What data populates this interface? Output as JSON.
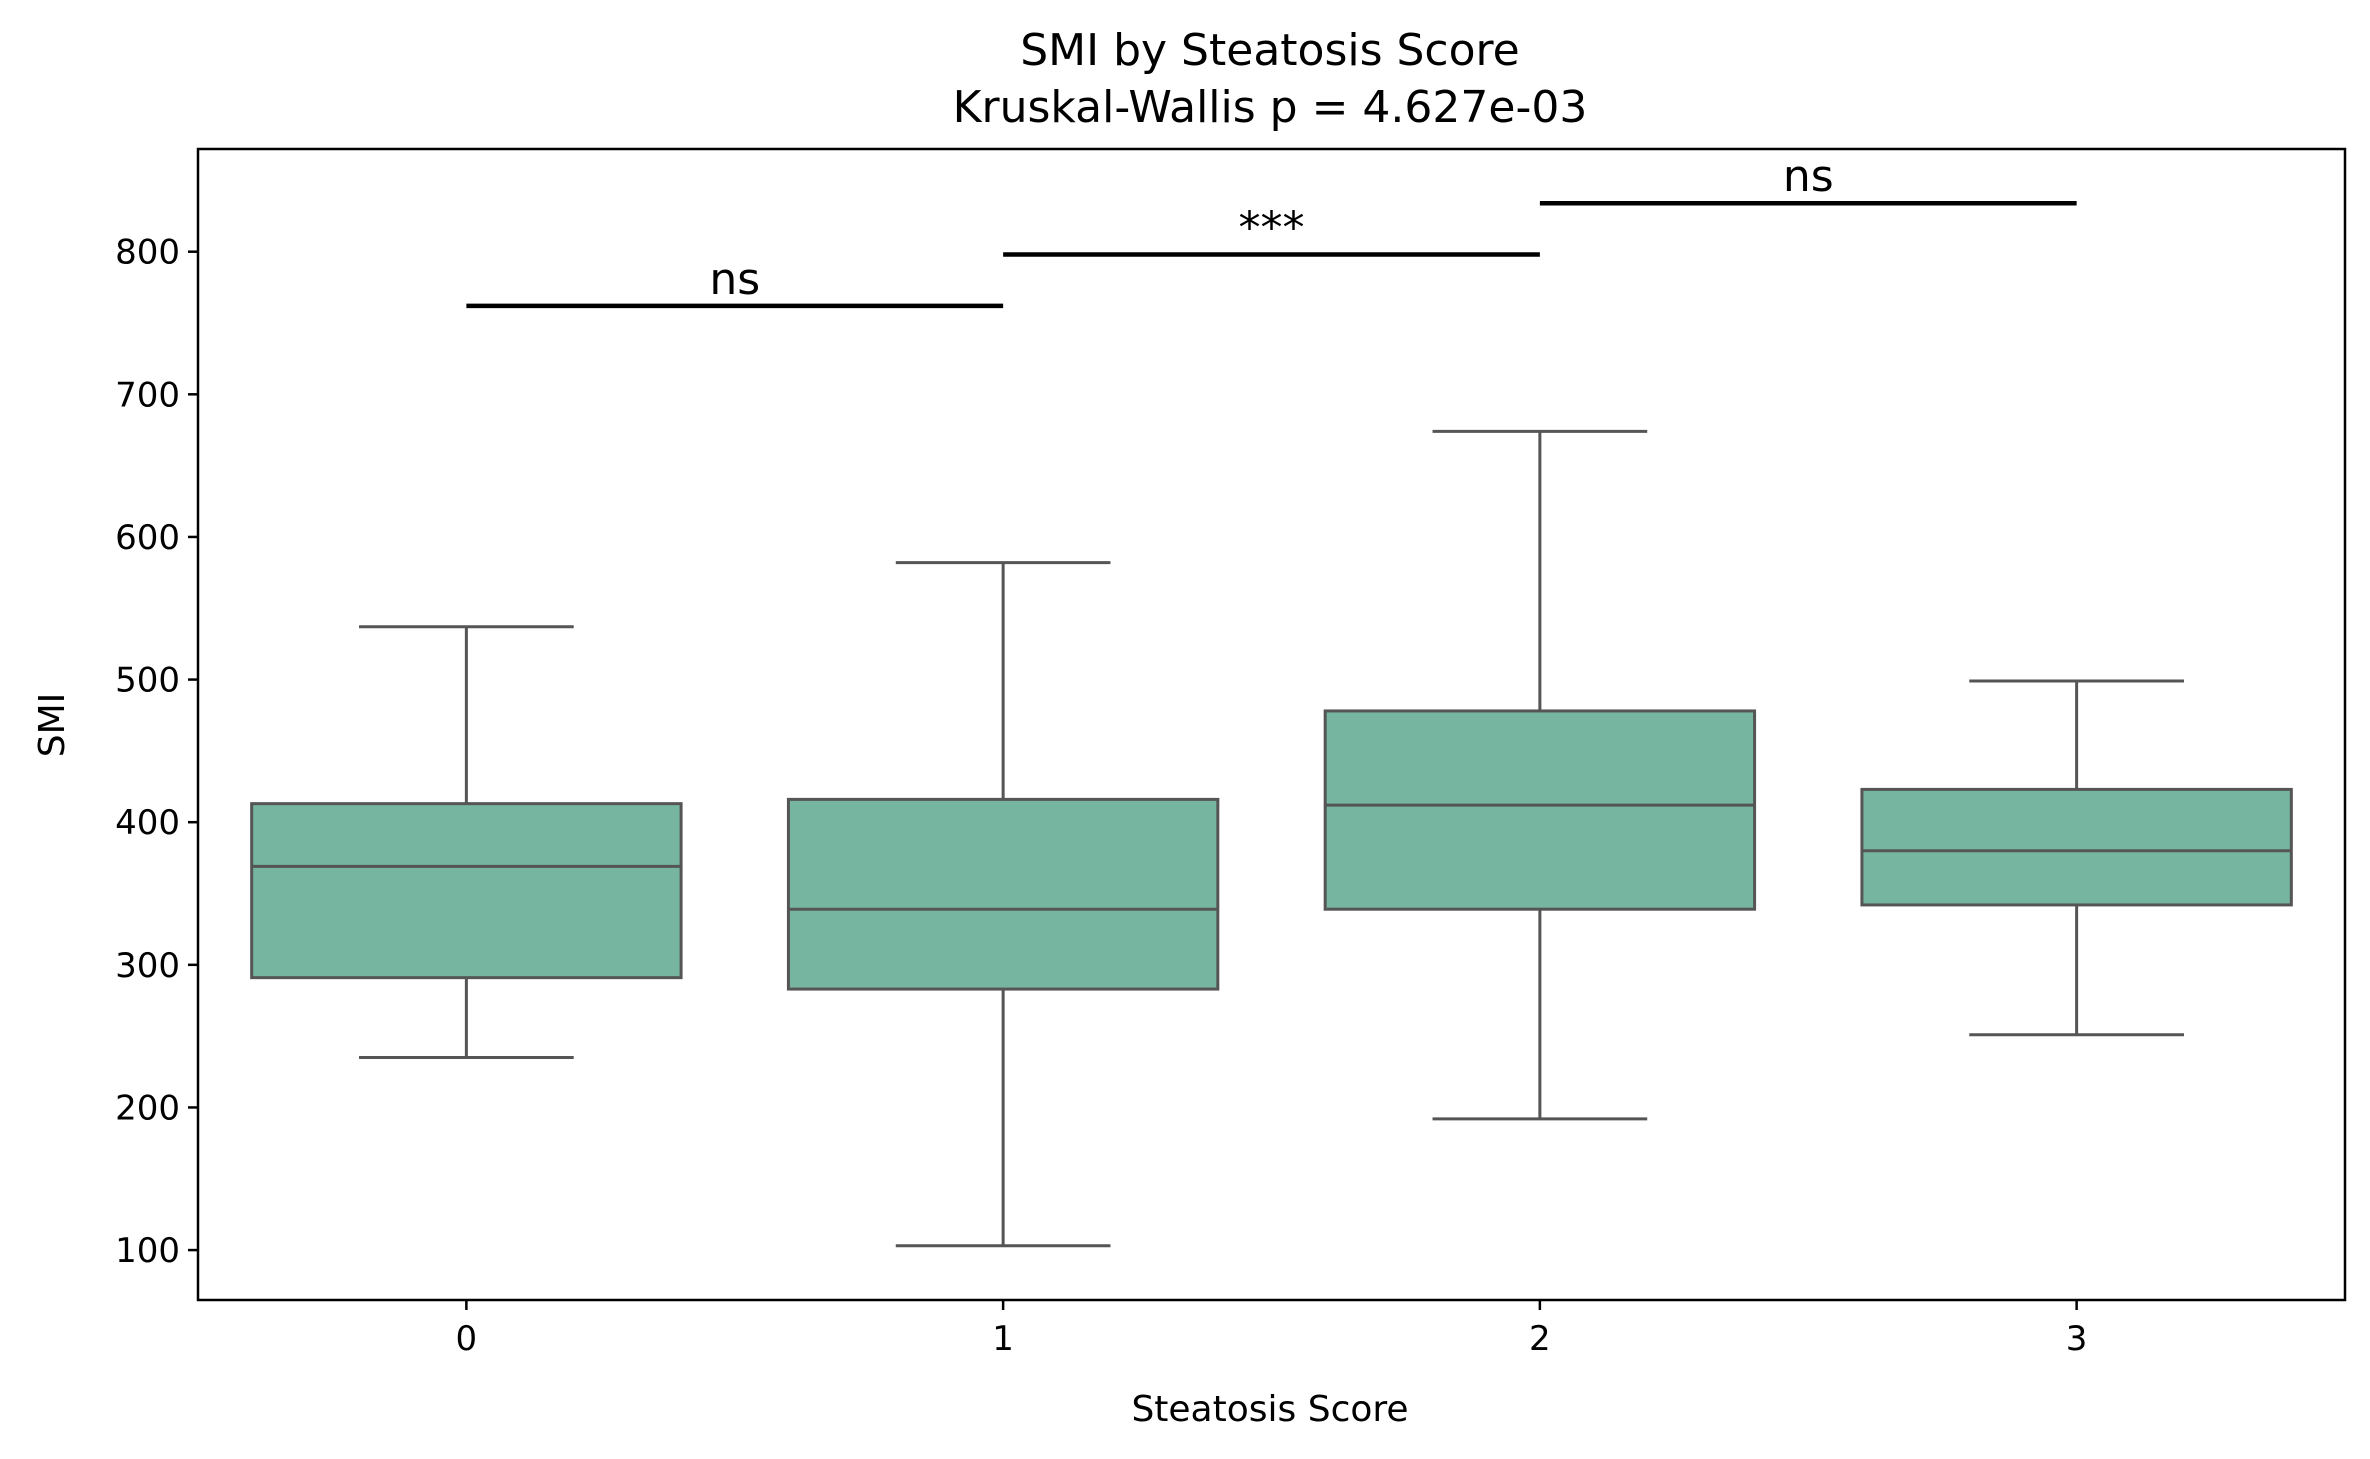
{
  "chart_data": {
    "type": "box",
    "title": "SMI by Steatosis Score",
    "subtitle": "Kruskal-Wallis p = 4.627e-03",
    "xlabel": "Steatosis Score",
    "ylabel": "SMI",
    "ylim": [
      65,
      872
    ],
    "yticks": [
      100,
      200,
      300,
      400,
      500,
      600,
      700,
      800
    ],
    "categories": [
      "0",
      "1",
      "2",
      "3"
    ],
    "boxes": [
      {
        "category": "0",
        "whisker_low": 235,
        "q1": 291,
        "median": 369,
        "q3": 413,
        "whisker_high": 537
      },
      {
        "category": "1",
        "whisker_low": 103,
        "q1": 283,
        "median": 339,
        "q3": 416,
        "whisker_high": 582
      },
      {
        "category": "2",
        "whisker_low": 192,
        "q1": 339,
        "median": 412,
        "q3": 478,
        "whisker_high": 674
      },
      {
        "category": "3",
        "whisker_low": 251,
        "q1": 342,
        "median": 380,
        "q3": 423,
        "whisker_high": 499
      }
    ],
    "significance": [
      {
        "from": "0",
        "to": "1",
        "label": "ns",
        "y": 762
      },
      {
        "from": "1",
        "to": "2",
        "label": "***",
        "y": 798
      },
      {
        "from": "2",
        "to": "3",
        "label": "ns",
        "y": 834
      }
    ],
    "colors": {
      "box_fill": "#76b6a0",
      "box_edge": "#555555",
      "sig_line": "#000000"
    },
    "grid": false,
    "legend": "none"
  }
}
